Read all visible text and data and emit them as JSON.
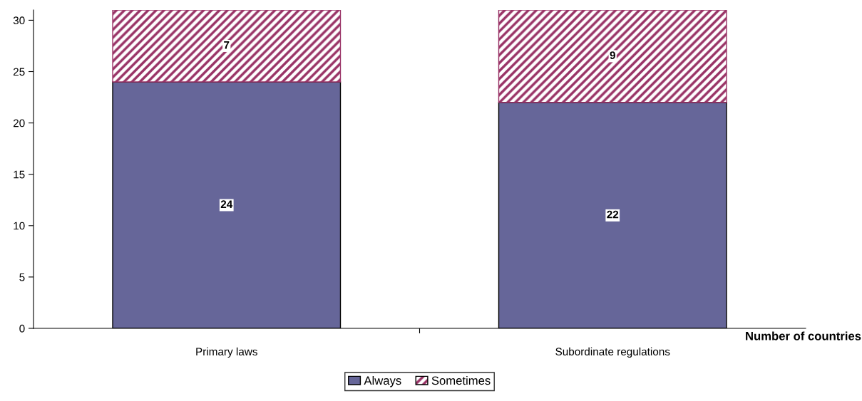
{
  "chart_data": {
    "type": "bar",
    "stacked": true,
    "categories": [
      "Primary laws",
      "Subordinate regulations"
    ],
    "series": [
      {
        "name": "Always",
        "color": "#666699",
        "values": [
          24,
          22
        ]
      },
      {
        "name": "Sometimes",
        "color": "#993366",
        "values": [
          7,
          9
        ]
      }
    ],
    "xlabel": "Number of countries",
    "ylim": [
      0,
      31
    ],
    "yticks": [
      0,
      5,
      10,
      15,
      20,
      25,
      30
    ],
    "data_labels": true,
    "legend": "bottom",
    "grid": false
  }
}
